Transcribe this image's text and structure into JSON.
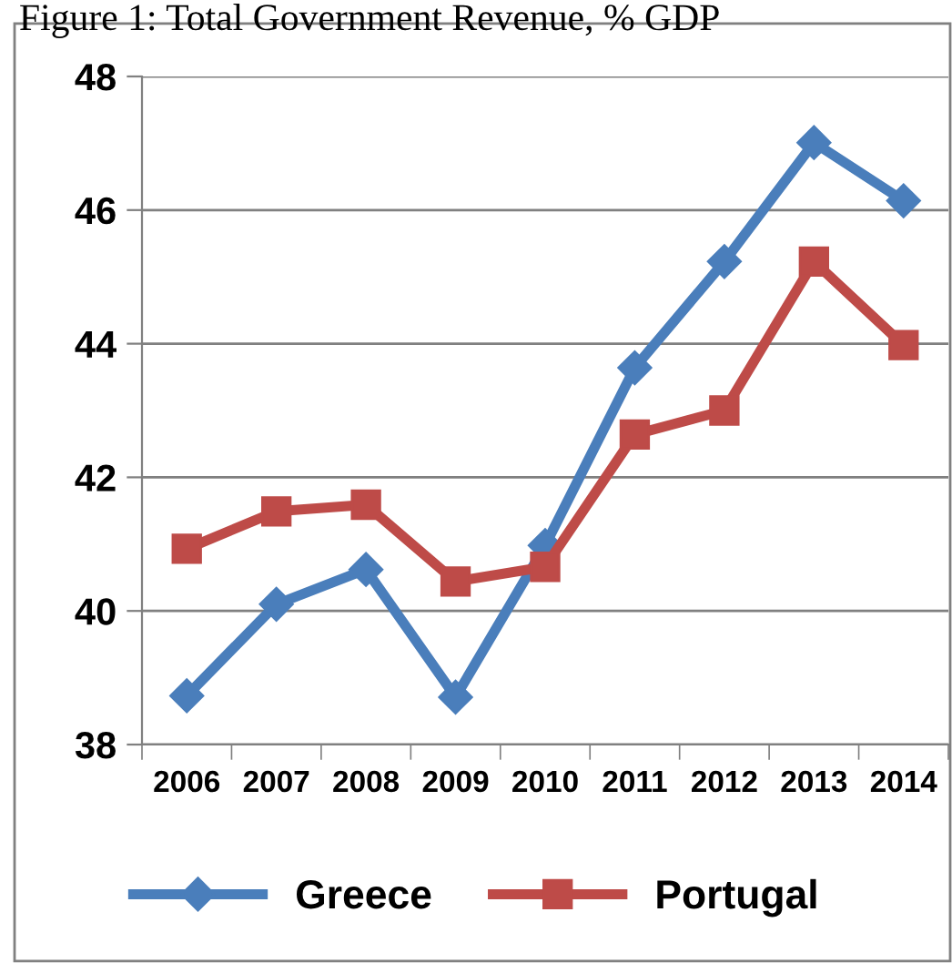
{
  "chart_data": {
    "type": "line",
    "title": "Figure 1: Total Government Revenue, % GDP",
    "categories": [
      "2006",
      "2007",
      "2008",
      "2009",
      "2010",
      "2011",
      "2012",
      "2013",
      "2014"
    ],
    "series": [
      {
        "name": "Greece",
        "color": "#4a7ebb",
        "marker": "diamond",
        "values": [
          38.73,
          40.1,
          40.62,
          38.71,
          40.98,
          43.64,
          45.23,
          47.01,
          46.14
        ]
      },
      {
        "name": "Portugal",
        "color": "#be4b48",
        "marker": "square",
        "values": [
          40.93,
          41.49,
          41.59,
          40.44,
          40.66,
          42.64,
          43.0,
          45.23,
          43.98
        ]
      }
    ],
    "ylim": [
      38,
      48
    ],
    "yticks": [
      38,
      40,
      42,
      44,
      46,
      48
    ],
    "grid": "y",
    "legend": "bottom"
  }
}
